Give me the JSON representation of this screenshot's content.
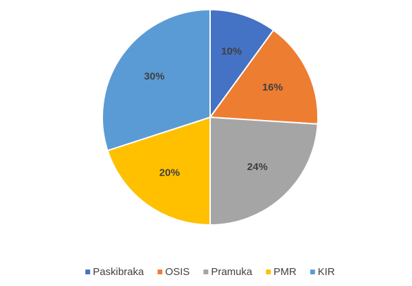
{
  "chart_data": {
    "type": "pie",
    "categories": [
      "Paskibraka",
      "OSIS",
      "Pramuka",
      "PMR",
      "KIR"
    ],
    "values": [
      10,
      16,
      24,
      20,
      30
    ],
    "value_labels": [
      "10%",
      "16%",
      "24%",
      "20%",
      "30%"
    ],
    "colors": [
      "#4472c4",
      "#ed7d31",
      "#a5a5a5",
      "#ffc000",
      "#5b9bd5"
    ],
    "legend": "bottom"
  }
}
